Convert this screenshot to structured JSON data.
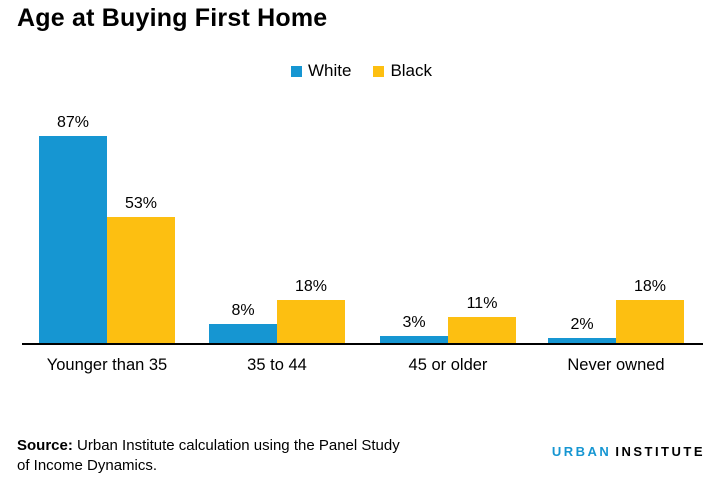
{
  "title": "Age at Buying First Home",
  "chart_data": {
    "type": "bar",
    "categories": [
      "Younger than 35",
      "35 to 44",
      "45 or older",
      "Never owned"
    ],
    "series": [
      {
        "name": "White",
        "color": "#1696D2",
        "values": [
          87,
          8,
          3,
          2
        ]
      },
      {
        "name": "Black",
        "color": "#FDBF11",
        "values": [
          53,
          18,
          11,
          18
        ]
      }
    ],
    "unit": "%",
    "title": "Age at Buying First Home",
    "xlabel": "",
    "ylabel": "",
    "ylim": [
      0,
      100
    ],
    "grid": false,
    "legend_position": "top-center",
    "value_labels_shown": true,
    "y_axis_shown": false
  },
  "source": {
    "prefix": "Source:",
    "text": "Urban Institute calculation using the Panel Study of Income Dynamics."
  },
  "logo": {
    "part1": "URBAN",
    "part2": "INSTITUTE",
    "part1_color": "#1696D2",
    "part2_color": "#000000"
  }
}
